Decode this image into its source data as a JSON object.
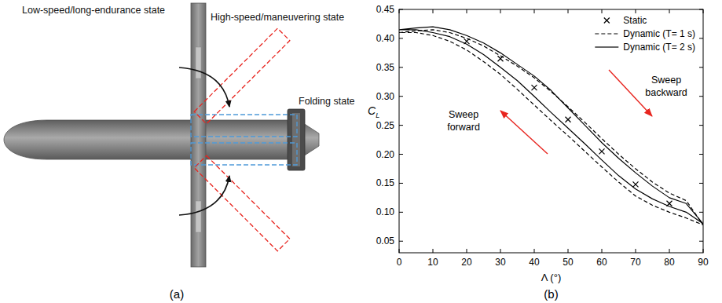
{
  "diagram": {
    "panel_label": "(a)",
    "labels": [
      "Low-speed/long-endurance state",
      "High-speed/maneuvering state",
      "Folding state"
    ]
  },
  "chart_data": {
    "type": "line",
    "panel_label": "(b)",
    "x_label": "Λ (°)",
    "y_label": "CL",
    "xlim": [
      0,
      90
    ],
    "ylim": [
      0.03,
      0.45
    ],
    "xticks": [
      0,
      10,
      20,
      30,
      40,
      50,
      60,
      70,
      80,
      90
    ],
    "yticks": [
      0.05,
      {
        "value": 0.1,
        "label": "0.10"
      },
      0.15,
      {
        "value": 0.2,
        "label": "0.20"
      },
      0.25,
      {
        "value": 0.3,
        "label": "0.30"
      },
      0.35,
      {
        "value": 0.4,
        "label": "0.40"
      },
      0.45
    ],
    "grid": false,
    "legend": "upper right",
    "series": [
      {
        "name": "Static",
        "type": "scatter",
        "marker": "x",
        "color": "#000000",
        "x": [
          20,
          30,
          40,
          50,
          60,
          70,
          80
        ],
        "values": [
          0.395,
          0.365,
          0.315,
          0.26,
          0.205,
          0.148,
          0.115
        ]
      },
      {
        "name": "Dynamic (T= 1 s)",
        "type": "line",
        "line_style": "dashed",
        "color": "#000000",
        "x": [
          0,
          5,
          10,
          15,
          20,
          25,
          30,
          35,
          40,
          45,
          50,
          55,
          60,
          65,
          70,
          75,
          80,
          85,
          90,
          85,
          80,
          75,
          70,
          65,
          60,
          55,
          50,
          45,
          40,
          35,
          30,
          25,
          20,
          15,
          10,
          5,
          0
        ],
        "values": [
          0.41,
          0.413,
          0.415,
          0.41,
          0.4,
          0.387,
          0.37,
          0.352,
          0.332,
          0.308,
          0.282,
          0.255,
          0.227,
          0.2,
          0.175,
          0.152,
          0.133,
          0.12,
          0.078,
          0.09,
          0.1,
          0.112,
          0.128,
          0.152,
          0.178,
          0.205,
          0.232,
          0.258,
          0.285,
          0.312,
          0.338,
          0.36,
          0.38,
          0.395,
          0.405,
          0.41,
          0.41
        ]
      },
      {
        "name": "Dynamic (T= 2 s)",
        "type": "line",
        "line_style": "solid",
        "color": "#000000",
        "x": [
          0,
          5,
          10,
          15,
          20,
          25,
          30,
          35,
          40,
          45,
          50,
          55,
          60,
          65,
          70,
          75,
          80,
          85,
          90,
          85,
          80,
          75,
          70,
          65,
          60,
          55,
          50,
          45,
          40,
          35,
          30,
          25,
          20,
          15,
          10,
          5,
          0
        ],
        "values": [
          0.415,
          0.418,
          0.42,
          0.415,
          0.405,
          0.392,
          0.375,
          0.355,
          0.335,
          0.31,
          0.28,
          0.25,
          0.22,
          0.193,
          0.168,
          0.145,
          0.125,
          0.115,
          0.08,
          0.1,
          0.11,
          0.123,
          0.14,
          0.163,
          0.19,
          0.218,
          0.245,
          0.272,
          0.3,
          0.327,
          0.35,
          0.372,
          0.39,
          0.403,
          0.41,
          0.415,
          0.415
        ]
      }
    ],
    "annotations": [
      {
        "text": "Sweep backward"
      },
      {
        "text": "Sweep forward"
      }
    ]
  }
}
